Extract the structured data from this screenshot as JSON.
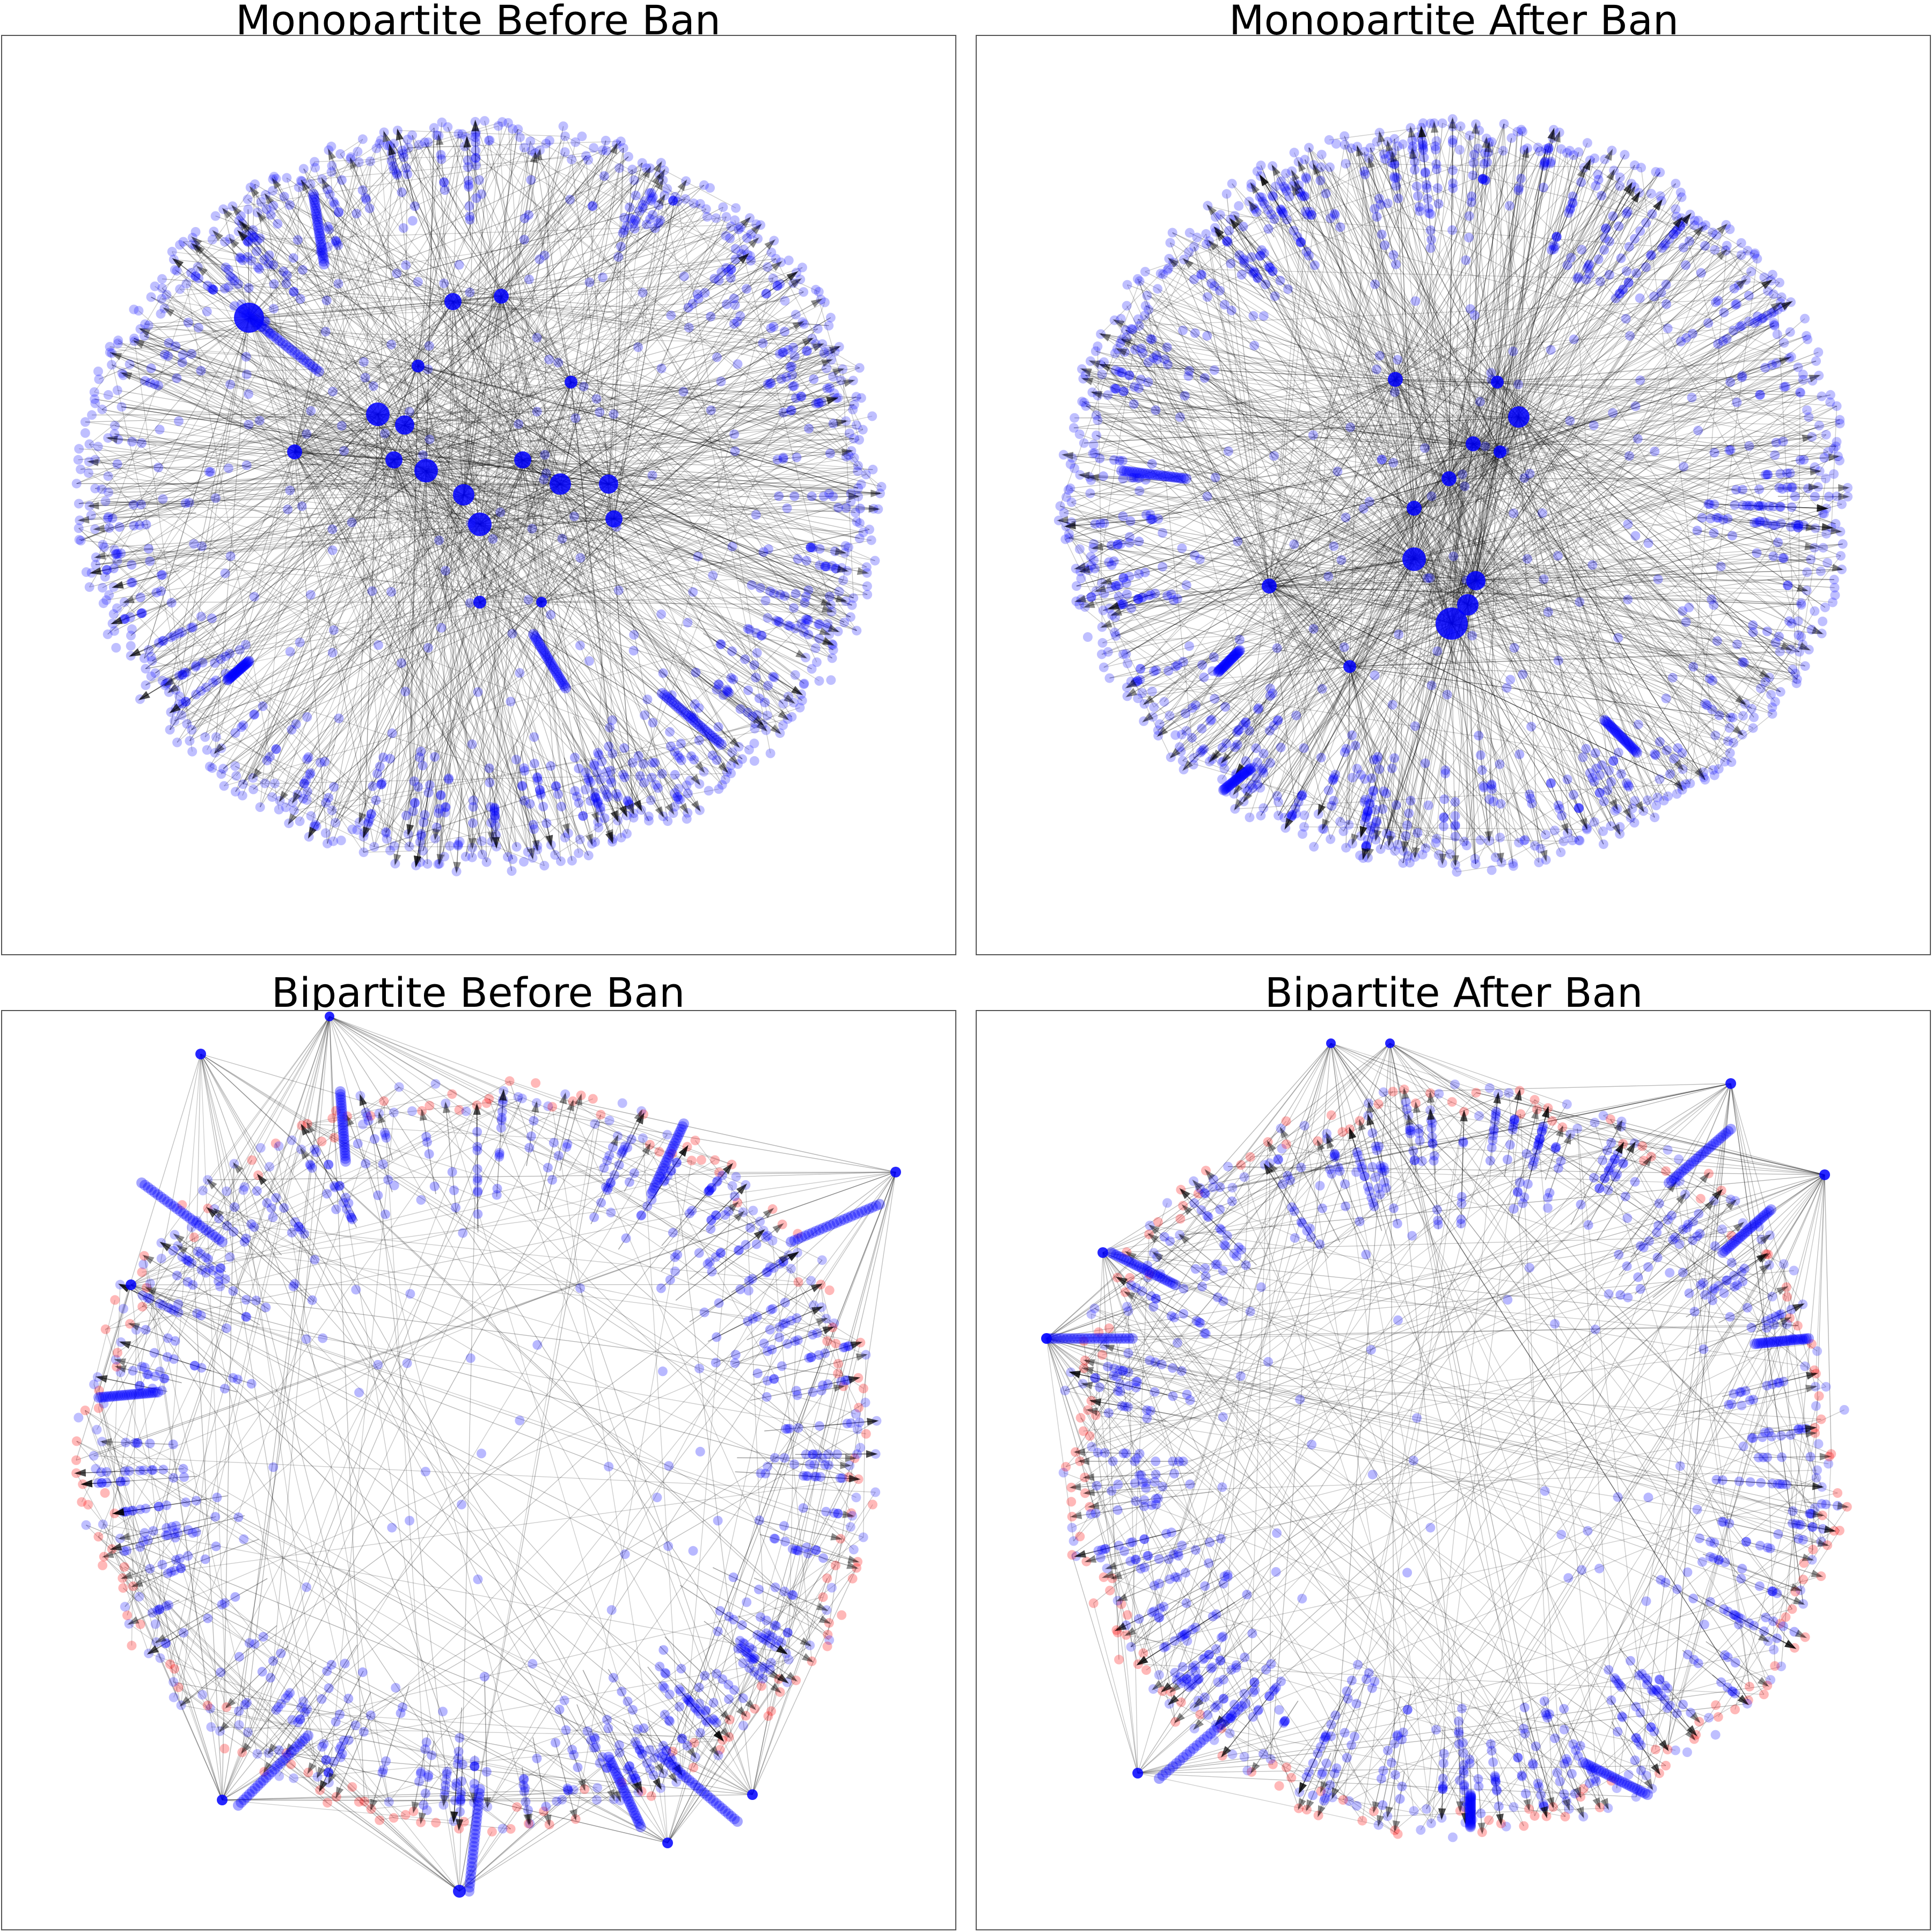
{
  "figure": {
    "panels": [
      {
        "id": "mono-before",
        "title": "Monopartite Before Ban",
        "graph_type": "monopartite",
        "period": "before-ban"
      },
      {
        "id": "mono-after",
        "title": "Monopartite After Ban",
        "graph_type": "monopartite",
        "period": "after-ban"
      },
      {
        "id": "bi-before",
        "title": "Bipartite Before Ban",
        "graph_type": "bipartite",
        "period": "before-ban"
      },
      {
        "id": "bi-after",
        "title": "Bipartite After Ban",
        "graph_type": "bipartite",
        "period": "after-ban"
      }
    ]
  },
  "colors": {
    "node_primary": "#0000ff",
    "node_secondary": "#ff0000",
    "edge": "#000000",
    "frame": "#555555",
    "background": "#ffffff"
  }
}
